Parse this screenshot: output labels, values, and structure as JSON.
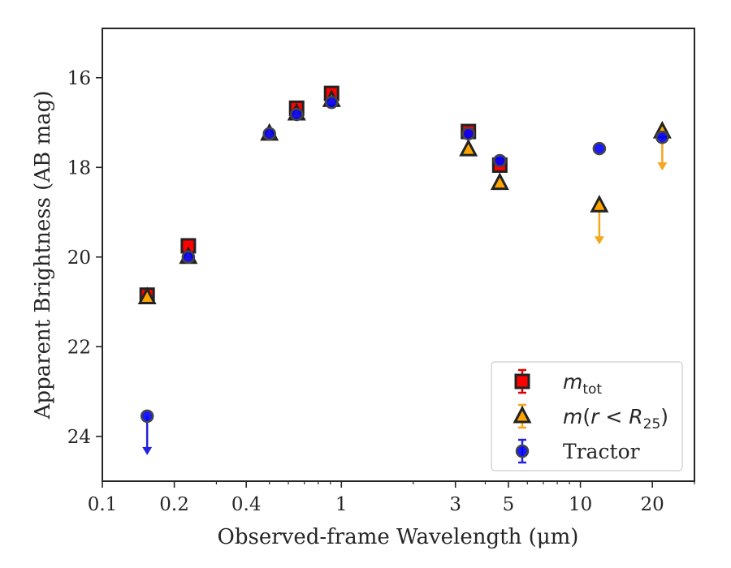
{
  "chart_data": {
    "type": "scatter",
    "xlabel": "Observed-frame Wavelength (μm)",
    "ylabel": "Apparent Brightness (AB mag)",
    "xscale": "log",
    "xlim": [
      0.1,
      30
    ],
    "ylim": [
      25,
      14.9
    ],
    "y_inverted": true,
    "xticks": [
      0.1,
      0.2,
      0.4,
      1,
      3,
      5,
      10,
      20
    ],
    "xtick_labels": [
      "0.1",
      "0.2",
      "0.4",
      "1",
      "3",
      "5",
      "10",
      "20"
    ],
    "yticks": [
      16,
      18,
      20,
      22,
      24
    ],
    "ytick_labels": [
      "16",
      "18",
      "20",
      "22",
      "24"
    ],
    "grid": false,
    "legend_position": "lower-right",
    "series": [
      {
        "name": "m_tot",
        "marker": "square",
        "color": "#ff0000",
        "points": [
          {
            "x": 0.154,
            "y": 20.85
          },
          {
            "x": 0.229,
            "y": 19.75
          },
          {
            "x": 0.65,
            "y": 16.68
          },
          {
            "x": 0.91,
            "y": 16.35
          },
          {
            "x": 3.4,
            "y": 17.2
          },
          {
            "x": 4.6,
            "y": 17.95
          }
        ]
      },
      {
        "name": "m(r<R25)",
        "marker": "triangle",
        "color": "#ffa500",
        "points": [
          {
            "x": 0.154,
            "y": 20.9
          },
          {
            "x": 0.229,
            "y": 20.0
          },
          {
            "x": 0.5,
            "y": 17.25
          },
          {
            "x": 0.65,
            "y": 16.8
          },
          {
            "x": 0.91,
            "y": 16.5
          },
          {
            "x": 3.4,
            "y": 17.6
          },
          {
            "x": 4.6,
            "y": 18.35
          },
          {
            "x": 12.0,
            "y": 18.85,
            "upper_limit": true
          },
          {
            "x": 22.0,
            "y": 17.2,
            "upper_limit": true
          }
        ]
      },
      {
        "name": "Tractor",
        "marker": "circle",
        "color": "#0000ff",
        "points": [
          {
            "x": 0.154,
            "y": 23.55,
            "upper_limit": true
          },
          {
            "x": 0.229,
            "y": 20.0
          },
          {
            "x": 0.5,
            "y": 17.25
          },
          {
            "x": 0.65,
            "y": 16.82
          },
          {
            "x": 0.91,
            "y": 16.55
          },
          {
            "x": 3.4,
            "y": 17.25
          },
          {
            "x": 4.6,
            "y": 17.85
          },
          {
            "x": 12.0,
            "y": 17.58
          },
          {
            "x": 22.0,
            "y": 17.33
          }
        ]
      }
    ]
  }
}
